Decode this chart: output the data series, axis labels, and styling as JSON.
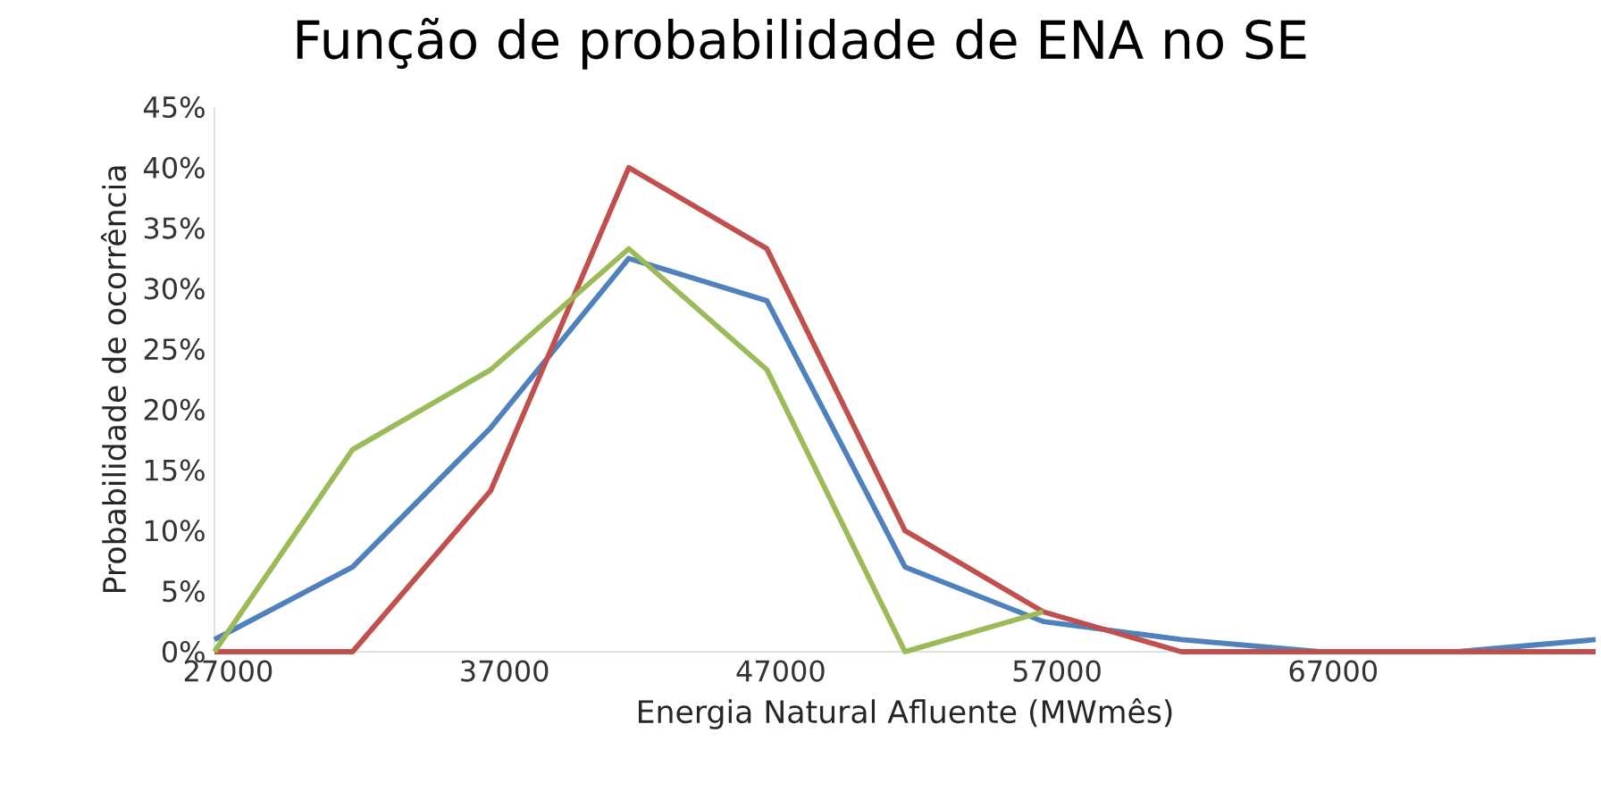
{
  "chart_data": {
    "type": "line",
    "title": "Função de probabilidade de ENA no SE",
    "xlabel": "Energia Natural Afluente (MWmês)",
    "ylabel": "Probabilidade de ocorrência",
    "x": [
      26500,
      31500,
      36500,
      41500,
      46500,
      51500,
      56500,
      61500,
      66500,
      71500,
      76500
    ],
    "series": [
      {
        "color": "#4f81bd",
        "values": [
          1,
          7,
          18.5,
          32.5,
          29,
          7,
          2.5,
          1,
          0,
          0,
          1
        ]
      },
      {
        "color": "#c0504d",
        "values": [
          0,
          0,
          13.3,
          40,
          33.3,
          10,
          3.3,
          0,
          0,
          0,
          0
        ]
      },
      {
        "color": "#9bbb59",
        "values": [
          0,
          16.7,
          23.3,
          33.3,
          23.3,
          0,
          3.3,
          null,
          null,
          null,
          null
        ]
      }
    ],
    "xlim": [
      26500,
      76500
    ],
    "xticks": [
      27000,
      37000,
      47000,
      57000,
      67000
    ],
    "ylim": [
      0,
      45
    ],
    "yticks": [
      {
        "value": 0,
        "label": "0%"
      },
      {
        "value": 5,
        "label": "5%"
      },
      {
        "value": 10,
        "label": "10%"
      },
      {
        "value": 15,
        "label": "15%"
      },
      {
        "value": 20,
        "label": "20%"
      },
      {
        "value": 25,
        "label": "25%"
      },
      {
        "value": 30,
        "label": "30%"
      },
      {
        "value": 35,
        "label": "35%"
      },
      {
        "value": 40,
        "label": "40%"
      },
      {
        "value": 45,
        "label": "45%"
      }
    ],
    "grid": false,
    "marker": "none",
    "line_style": "solid"
  }
}
